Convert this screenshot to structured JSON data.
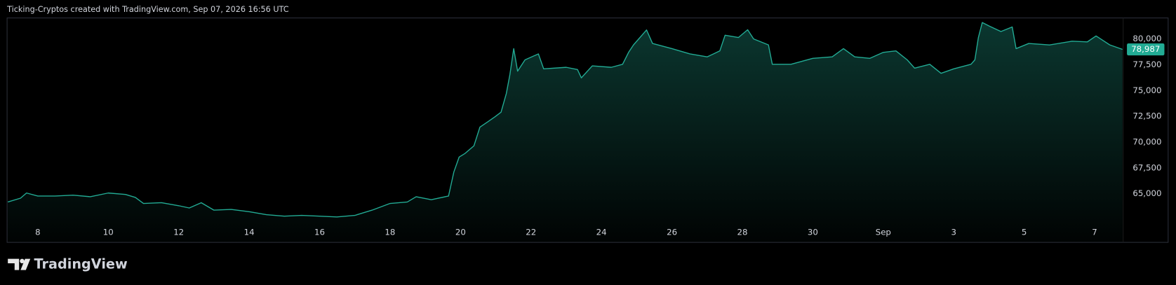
{
  "chart_data": {
    "type": "area",
    "title": "Ticking-Cryptos created with TradingView.com, Sep 07, 2026 16:56 UTC",
    "brand": "TradingView",
    "color": "#22ab94",
    "grid": false,
    "x": [
      -0.85,
      -0.49,
      -0.32,
      0,
      0.49,
      1,
      1.49,
      2,
      2.49,
      2.77,
      3,
      3.51,
      4,
      4.3,
      4.64,
      5,
      5.49,
      6,
      6.49,
      7,
      7.49,
      8,
      8.49,
      9,
      9.49,
      10,
      10.49,
      10.74,
      11.17,
      11.66,
      11.81,
      11.96,
      12.13,
      12.38,
      12.55,
      12.77,
      12.98,
      13.15,
      13.3,
      13.4,
      13.51,
      13.62,
      13.83,
      14.21,
      14.36,
      15,
      15.32,
      15.43,
      15.74,
      16.28,
      16.6,
      16.77,
      16.91,
      17.28,
      17.45,
      18,
      18.51,
      19,
      19.36,
      19.51,
      19.89,
      20.15,
      20.32,
      20.74,
      20.85,
      21.38,
      22,
      22.55,
      22.87,
      23.19,
      23.62,
      24,
      24.36,
      24.68,
      24.89,
      25.32,
      25.64,
      26,
      26.49,
      26.6,
      26.7,
      26.81,
      27.02,
      27.34,
      27.66,
      27.77,
      28.13,
      28.72,
      29.36,
      29.79,
      30.04,
      30.43,
      30.79
    ],
    "values": [
      64200,
      64570,
      65070,
      64780,
      64780,
      64860,
      64710,
      65070,
      64930,
      64640,
      64060,
      64130,
      63840,
      63620,
      64130,
      63410,
      63480,
      63260,
      62970,
      62830,
      62900,
      62830,
      62750,
      62900,
      63410,
      64060,
      64200,
      64710,
      64420,
      64780,
      67100,
      68550,
      68910,
      69640,
      71450,
      71960,
      72460,
      72900,
      74710,
      76520,
      79060,
      76880,
      77970,
      78550,
      77100,
      77250,
      77030,
      76230,
      77390,
      77250,
      77540,
      78700,
      79420,
      80870,
      79560,
      79060,
      78550,
      78260,
      78840,
      80360,
      80140,
      80890,
      80000,
      79420,
      77540,
      77540,
      78120,
      78260,
      79060,
      78260,
      78120,
      78700,
      78840,
      77970,
      77170,
      77540,
      76670,
      77100,
      77540,
      77970,
      80140,
      81590,
      81230,
      80720,
      81160,
      79060,
      79560,
      79420,
      79780,
      79710,
      80290,
      79420,
      78987
    ],
    "last_price_label": "78,987",
    "xlim": [
      -0.85,
      30.81
    ],
    "xticks": [
      {
        "value": 0,
        "label": "8"
      },
      {
        "value": 2,
        "label": "10"
      },
      {
        "value": 4,
        "label": "12"
      },
      {
        "value": 6,
        "label": "14"
      },
      {
        "value": 8,
        "label": "16"
      },
      {
        "value": 10,
        "label": "18"
      },
      {
        "value": 12,
        "label": "20"
      },
      {
        "value": 14,
        "label": "22"
      },
      {
        "value": 16,
        "label": "24"
      },
      {
        "value": 18,
        "label": "26"
      },
      {
        "value": 20,
        "label": "28"
      },
      {
        "value": 22,
        "label": "30"
      },
      {
        "value": 24,
        "label": "Sep"
      },
      {
        "value": 26,
        "label": "3"
      },
      {
        "value": 28,
        "label": "5"
      },
      {
        "value": 30,
        "label": "7"
      }
    ],
    "ylim": [
      60360,
      81960
    ],
    "yticks": [
      {
        "value": 65000,
        "label": "65,000"
      },
      {
        "value": 67500,
        "label": "67,500"
      },
      {
        "value": 70000,
        "label": "70,000"
      },
      {
        "value": 72500,
        "label": "72,500"
      },
      {
        "value": 75000,
        "label": "75,000"
      },
      {
        "value": 77500,
        "label": "77,500"
      },
      {
        "value": 80000,
        "label": "80,000"
      }
    ]
  }
}
